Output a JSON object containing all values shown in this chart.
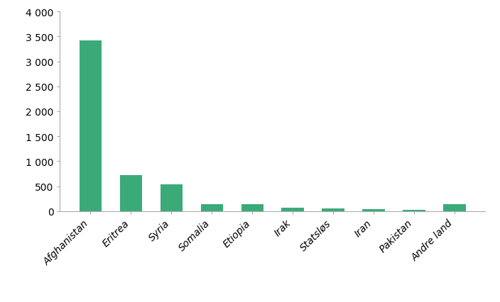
{
  "categories": [
    "Afghanistan",
    "Eritrea",
    "Syria",
    "Somalia",
    "Etiopia",
    "Irak",
    "Statsløs",
    "Iran",
    "Pakistan",
    "Andre land"
  ],
  "values": [
    3424,
    717,
    537,
    144,
    144,
    75,
    50,
    40,
    29,
    137
  ],
  "bar_color": "#3aab78",
  "ylim": [
    0,
    4000
  ],
  "yticks": [
    0,
    500,
    1000,
    1500,
    2000,
    2500,
    3000,
    3500,
    4000
  ],
  "ytick_labels": [
    "0",
    "500",
    "1 000",
    "1 500",
    "2 000",
    "2 500",
    "3 000",
    "3 500",
    "4 000"
  ],
  "background_color": "#ffffff",
  "tick_label_fontsize": 10,
  "xticklabel_rotation": 45,
  "bar_width": 0.55
}
